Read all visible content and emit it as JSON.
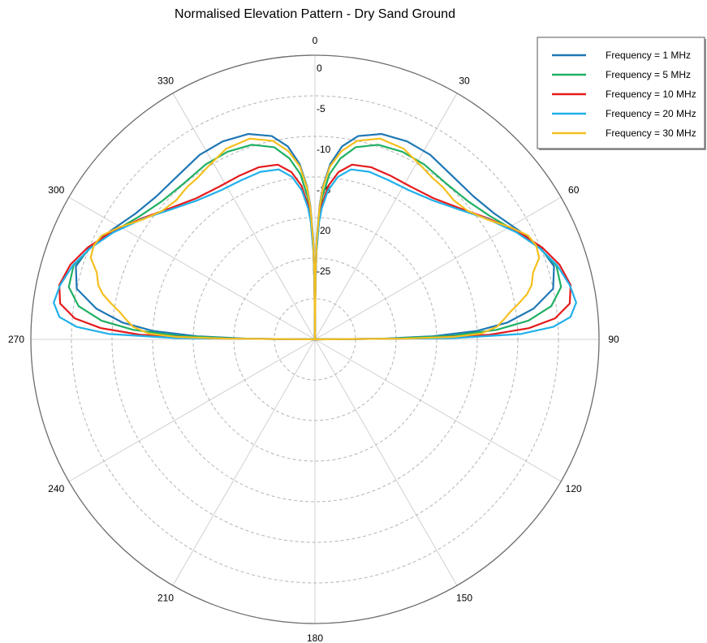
{
  "chart_data": {
    "type": "polar-line",
    "title": "Normalised Elevation Pattern - Dry Sand Ground",
    "angle_unit": "degrees",
    "angle_zero": "top",
    "angle_direction": "clockwise",
    "angular_ticks": [
      "0",
      "30",
      "60",
      "90",
      "120",
      "150",
      "180",
      "210",
      "240",
      "270",
      "300",
      "330"
    ],
    "radial_ticks": [
      "0",
      "-5",
      "-10",
      "-15",
      "-20",
      "-25"
    ],
    "radial_tick_values": [
      0,
      -5,
      -10,
      -15,
      -20,
      -25
    ],
    "rlim": [
      -35,
      0
    ],
    "grid": true,
    "legend_position": "top-right",
    "series": [
      {
        "name": "Frequency = 1 MHz",
        "color": "#1f77b4",
        "angles": [
          0,
          0.5,
          1,
          2,
          3,
          5,
          8,
          12,
          18,
          25,
          32,
          40,
          48,
          55,
          62,
          68,
          73,
          78,
          82,
          85,
          87,
          88.5,
          89.5,
          90
        ],
        "values": [
          -35,
          -27,
          -22.6,
          -18.5,
          -16.1,
          -13.3,
          -11.0,
          -9.4,
          -8.4,
          -8.1,
          -8.2,
          -8.7,
          -8.7,
          -8.0,
          -6.5,
          -5.0,
          -4.2,
          -5.0,
          -7.8,
          -11.2,
          -15.0,
          -20.5,
          -27,
          -35
        ]
      },
      {
        "name": "Frequency = 5 MHz",
        "color": "#20b063",
        "angles": [
          0,
          0.5,
          1,
          2,
          3,
          5,
          8,
          12,
          18,
          25,
          32,
          40,
          48,
          55,
          62,
          68,
          73,
          78,
          82,
          85,
          87,
          88.5,
          89.5,
          90
        ],
        "values": [
          -35,
          -28,
          -23.5,
          -19.6,
          -17.4,
          -14.6,
          -12.5,
          -10.8,
          -9.8,
          -9.5,
          -9.6,
          -9.9,
          -9.6,
          -8.6,
          -6.8,
          -5.1,
          -3.9,
          -4.0,
          -5.6,
          -8.6,
          -12.6,
          -18.2,
          -26,
          -35
        ]
      },
      {
        "name": "Frequency = 10 MHz",
        "color": "#e41a1c",
        "angles": [
          0,
          0.5,
          1,
          2,
          3,
          5,
          8,
          12,
          18,
          25,
          32,
          40,
          48,
          55,
          62,
          68,
          73,
          78,
          82,
          85,
          87,
          88.5,
          89.5,
          90
        ],
        "values": [
          -35,
          -28.5,
          -24,
          -20.4,
          -18.4,
          -16.0,
          -14.2,
          -13.0,
          -12.7,
          -12.8,
          -12.8,
          -12.3,
          -10.9,
          -9.0,
          -6.7,
          -4.8,
          -3.5,
          -2.8,
          -3.3,
          -5.3,
          -8.6,
          -13.5,
          -22,
          -35
        ]
      },
      {
        "name": "Frequency = 20 MHz",
        "color": "#21b0ea",
        "angles": [
          0,
          0.5,
          1,
          2,
          3,
          5,
          8,
          12,
          18,
          25,
          32,
          40,
          48,
          55,
          62,
          68,
          73,
          78,
          82,
          85,
          87,
          88.5,
          89.5,
          90
        ],
        "values": [
          -35,
          -28.5,
          -24.2,
          -20.6,
          -18.8,
          -16.6,
          -14.8,
          -13.6,
          -13.3,
          -13.4,
          -13.3,
          -12.6,
          -11.1,
          -9.1,
          -6.9,
          -5.1,
          -3.8,
          -2.9,
          -2.5,
          -3.4,
          -5.6,
          -9.6,
          -18,
          -35
        ]
      },
      {
        "name": "Frequency = 30 MHz",
        "color": "#f5bf1f",
        "angles": [
          0,
          0.5,
          1,
          2,
          3,
          5,
          8,
          12,
          18,
          25,
          32,
          36,
          40,
          45,
          50,
          55,
          60,
          64,
          67,
          70,
          73,
          76,
          78,
          80,
          82,
          84,
          86,
          88,
          89,
          89.5,
          90
        ],
        "values": [
          -35,
          -27,
          -23,
          -18.8,
          -16.3,
          -13.6,
          -11.6,
          -10.0,
          -9.0,
          -9.1,
          -10.0,
          -10.4,
          -10.5,
          -10.8,
          -10.4,
          -9.2,
          -7.3,
          -5.8,
          -5.4,
          -5.6,
          -6.9,
          -7.5,
          -8.3,
          -9.5,
          -10.7,
          -11.6,
          -12.5,
          -14.5,
          -18,
          -24,
          -35
        ]
      }
    ]
  }
}
